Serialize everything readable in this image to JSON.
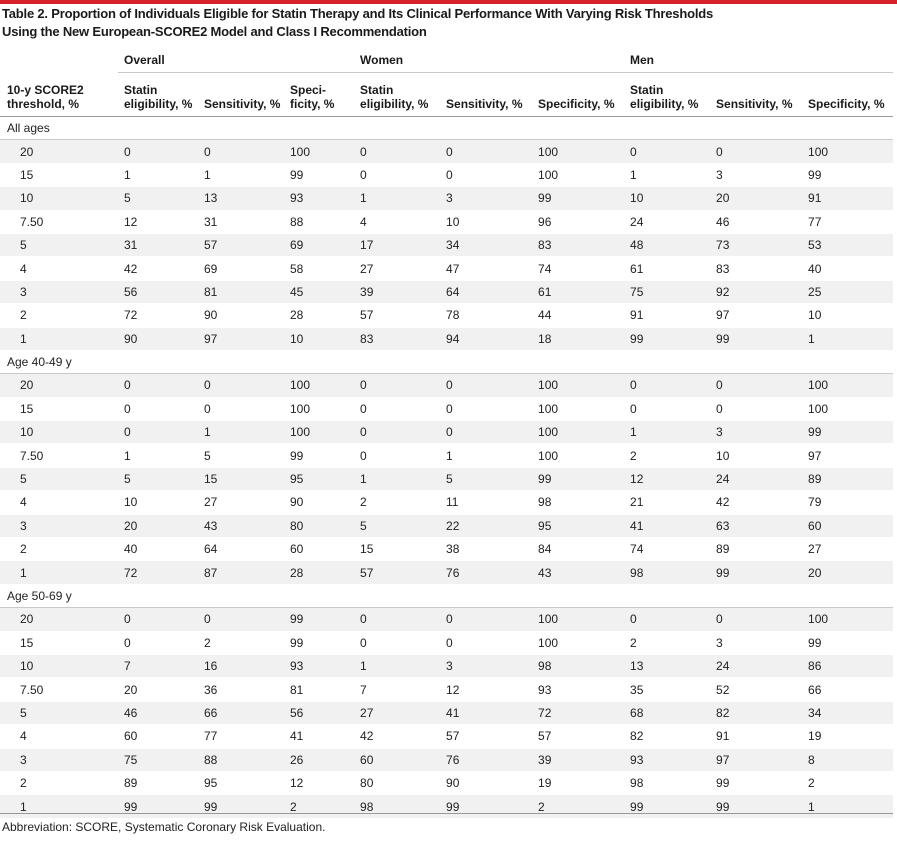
{
  "title": {
    "line1": "Table 2. Proportion of Individuals Eligible for Statin Therapy and Its Clinical Performance With Varying Risk Thresholds",
    "line2": "Using the New European-SCORE2 Model and Class I Recommendation"
  },
  "groups": {
    "overall": "Overall",
    "women": "Women",
    "men": "Men"
  },
  "columns": {
    "threshold": [
      "10-y SCORE2",
      "threshold, %"
    ],
    "overall": [
      [
        "Statin",
        "eligibility, %"
      ],
      [
        "",
        "Sensitivity, %"
      ],
      [
        "Speci-",
        "ficity, %"
      ]
    ],
    "women": [
      [
        "Statin",
        "eligibility, %"
      ],
      [
        "",
        "Sensitivity, %"
      ],
      [
        "",
        "Specificity, %"
      ]
    ],
    "men": [
      [
        "Statin",
        "eligibility, %"
      ],
      [
        "",
        "Sensitivity, %"
      ],
      [
        "",
        "Specificity, %"
      ]
    ]
  },
  "sections": [
    {
      "label": "All ages",
      "rows": [
        [
          "20",
          "0",
          "0",
          "100",
          "0",
          "0",
          "100",
          "0",
          "0",
          "100"
        ],
        [
          "15",
          "1",
          "1",
          "99",
          "0",
          "0",
          "100",
          "1",
          "3",
          "99"
        ],
        [
          "10",
          "5",
          "13",
          "93",
          "1",
          "3",
          "99",
          "10",
          "20",
          "91"
        ],
        [
          "7.50",
          "12",
          "31",
          "88",
          "4",
          "10",
          "96",
          "24",
          "46",
          "77"
        ],
        [
          "5",
          "31",
          "57",
          "69",
          "17",
          "34",
          "83",
          "48",
          "73",
          "53"
        ],
        [
          "4",
          "42",
          "69",
          "58",
          "27",
          "47",
          "74",
          "61",
          "83",
          "40"
        ],
        [
          "3",
          "56",
          "81",
          "45",
          "39",
          "64",
          "61",
          "75",
          "92",
          "25"
        ],
        [
          "2",
          "72",
          "90",
          "28",
          "57",
          "78",
          "44",
          "91",
          "97",
          "10"
        ],
        [
          "1",
          "90",
          "97",
          "10",
          "83",
          "94",
          "18",
          "99",
          "99",
          "1"
        ]
      ]
    },
    {
      "label": "Age 40-49 y",
      "rows": [
        [
          "20",
          "0",
          "0",
          "100",
          "0",
          "0",
          "100",
          "0",
          "0",
          "100"
        ],
        [
          "15",
          "0",
          "0",
          "100",
          "0",
          "0",
          "100",
          "0",
          "0",
          "100"
        ],
        [
          "10",
          "0",
          "1",
          "100",
          "0",
          "0",
          "100",
          "1",
          "3",
          "99"
        ],
        [
          "7.50",
          "1",
          "5",
          "99",
          "0",
          "1",
          "100",
          "2",
          "10",
          "97"
        ],
        [
          "5",
          "5",
          "15",
          "95",
          "1",
          "5",
          "99",
          "12",
          "24",
          "89"
        ],
        [
          "4",
          "10",
          "27",
          "90",
          "2",
          "11",
          "98",
          "21",
          "42",
          "79"
        ],
        [
          "3",
          "20",
          "43",
          "80",
          "5",
          "22",
          "95",
          "41",
          "63",
          "60"
        ],
        [
          "2",
          "40",
          "64",
          "60",
          "15",
          "38",
          "84",
          "74",
          "89",
          "27"
        ],
        [
          "1",
          "72",
          "87",
          "28",
          "57",
          "76",
          "43",
          "98",
          "99",
          "20"
        ]
      ]
    },
    {
      "label": "Age 50-69 y",
      "rows": [
        [
          "20",
          "0",
          "0",
          "99",
          "0",
          "0",
          "100",
          "0",
          "0",
          "100"
        ],
        [
          "15",
          "0",
          "2",
          "99",
          "0",
          "0",
          "100",
          "2",
          "3",
          "99"
        ],
        [
          "10",
          "7",
          "16",
          "93",
          "1",
          "3",
          "98",
          "13",
          "24",
          "86"
        ],
        [
          "7.50",
          "20",
          "36",
          "81",
          "7",
          "12",
          "93",
          "35",
          "52",
          "66"
        ],
        [
          "5",
          "46",
          "66",
          "56",
          "27",
          "41",
          "72",
          "68",
          "82",
          "34"
        ],
        [
          "4",
          "60",
          "77",
          "41",
          "42",
          "57",
          "57",
          "82",
          "91",
          "19"
        ],
        [
          "3",
          "75",
          "88",
          "26",
          "60",
          "76",
          "39",
          "93",
          "97",
          "8"
        ],
        [
          "2",
          "89",
          "95",
          "12",
          "80",
          "90",
          "19",
          "98",
          "99",
          "2"
        ],
        [
          "1",
          "99",
          "99",
          "2",
          "98",
          "99",
          "2",
          "99",
          "99",
          "1"
        ]
      ]
    }
  ],
  "footnote": "Abbreviation: SCORE, Systematic Coronary Risk Evaluation."
}
